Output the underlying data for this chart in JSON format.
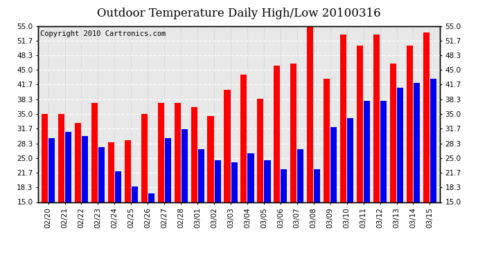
{
  "title": "Outdoor Temperature Daily High/Low 20100316",
  "copyright": "Copyright 2010 Cartronics.com",
  "background_color": "#ffffff",
  "plot_bg_color": "#ffffff",
  "bar_color_high": "#ff0000",
  "bar_color_low": "#0000ee",
  "dates": [
    "02/20",
    "02/21",
    "02/22",
    "02/23",
    "02/24",
    "02/25",
    "02/26",
    "02/27",
    "02/28",
    "03/01",
    "03/02",
    "03/03",
    "03/04",
    "03/05",
    "03/06",
    "03/07",
    "03/08",
    "03/09",
    "03/10",
    "03/11",
    "03/12",
    "03/13",
    "03/14",
    "03/15"
  ],
  "highs": [
    35.0,
    35.0,
    33.0,
    37.5,
    28.5,
    29.0,
    35.0,
    37.5,
    37.5,
    36.5,
    34.5,
    40.5,
    44.0,
    38.5,
    46.0,
    46.5,
    55.0,
    43.0,
    53.0,
    50.5,
    53.0,
    46.5,
    50.5,
    53.5
  ],
  "lows": [
    29.5,
    31.0,
    30.0,
    27.5,
    22.0,
    18.5,
    17.0,
    29.5,
    31.5,
    27.0,
    24.5,
    24.0,
    26.0,
    24.5,
    22.5,
    27.0,
    22.5,
    32.0,
    34.0,
    38.0,
    38.0,
    41.0,
    42.0,
    43.0
  ],
  "ylim_min": 15.0,
  "ylim_max": 55.0,
  "yticks": [
    15.0,
    18.3,
    21.7,
    25.0,
    28.3,
    31.7,
    35.0,
    38.3,
    41.7,
    45.0,
    48.3,
    51.7,
    55.0
  ],
  "title_fontsize": 12,
  "tick_fontsize": 7.5,
  "copyright_fontsize": 7.5
}
